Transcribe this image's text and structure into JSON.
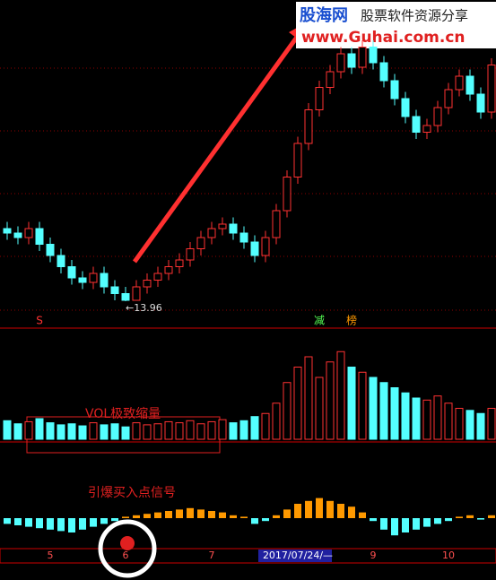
{
  "chart_data": {
    "type": "candlestick",
    "watermark": {
      "site": "股海网",
      "slogan": "股票软件资源分享",
      "url": "www.Guhai.com.cn"
    },
    "categories": [
      null,
      null,
      null,
      null,
      "5",
      null,
      null,
      null,
      null,
      null,
      null,
      "6",
      null,
      null,
      null,
      null,
      null,
      null,
      null,
      "7",
      null,
      null,
      null,
      null,
      null,
      null,
      null,
      "2017/07/24/—",
      null,
      null,
      null,
      null,
      null,
      null,
      "9",
      null,
      null,
      null,
      null,
      null,
      null,
      "10",
      null,
      null,
      null,
      null
    ],
    "open": [
      17.2,
      17.0,
      16.8,
      17.2,
      16.5,
      16.0,
      15.5,
      15.0,
      14.8,
      15.2,
      14.6,
      14.3,
      14.0,
      14.6,
      14.9,
      15.2,
      15.5,
      15.8,
      16.3,
      16.8,
      17.2,
      17.4,
      17.0,
      16.6,
      16.0,
      16.8,
      18.0,
      19.5,
      21.0,
      22.5,
      23.5,
      24.2,
      25.0,
      24.4,
      25.3,
      24.6,
      23.8,
      23.0,
      22.2,
      21.5,
      21.8,
      22.6,
      23.4,
      24.0,
      23.2,
      22.4
    ],
    "close": [
      17.0,
      16.8,
      17.2,
      16.5,
      16.0,
      15.5,
      15.0,
      14.8,
      15.2,
      14.6,
      14.3,
      14.0,
      14.6,
      14.9,
      15.2,
      15.5,
      15.8,
      16.3,
      16.8,
      17.2,
      17.4,
      17.0,
      16.6,
      16.0,
      16.8,
      18.0,
      19.5,
      21.0,
      22.5,
      23.5,
      24.2,
      25.0,
      24.4,
      25.3,
      24.6,
      23.8,
      23.0,
      22.2,
      21.5,
      21.8,
      22.6,
      23.4,
      24.0,
      23.2,
      22.4,
      24.5
    ],
    "high": [
      17.5,
      17.3,
      17.5,
      17.5,
      16.8,
      16.3,
      15.8,
      15.3,
      15.5,
      15.5,
      14.9,
      14.6,
      14.9,
      15.2,
      15.5,
      15.8,
      16.1,
      16.6,
      17.1,
      17.5,
      17.7,
      17.7,
      17.3,
      16.9,
      17.1,
      18.3,
      19.8,
      21.3,
      22.8,
      23.8,
      24.5,
      25.3,
      25.3,
      25.6,
      25.6,
      24.9,
      24.1,
      23.3,
      22.5,
      22.1,
      22.9,
      23.7,
      24.3,
      24.3,
      23.5,
      24.8
    ],
    "low": [
      16.7,
      16.5,
      16.5,
      16.2,
      15.7,
      15.2,
      14.7,
      14.5,
      14.5,
      14.3,
      14.0,
      13.96,
      13.98,
      14.3,
      14.6,
      14.9,
      15.2,
      15.5,
      16.0,
      16.5,
      16.9,
      16.7,
      16.3,
      15.7,
      15.7,
      16.5,
      17.7,
      19.2,
      20.7,
      22.2,
      23.2,
      23.9,
      24.1,
      24.1,
      24.3,
      23.5,
      22.7,
      21.9,
      21.2,
      21.2,
      21.5,
      22.3,
      23.1,
      22.9,
      22.1,
      22.1
    ],
    "ylim": [
      13,
      27
    ],
    "up_color": "#ff3232",
    "down_color": "#54ffff",
    "low_label": {
      "index": 11,
      "text": "←13.96"
    },
    "signals": [
      {
        "index": 3,
        "text": "S",
        "color": "#ff3232"
      },
      {
        "index": 29,
        "text": "减",
        "color": "#54ff54"
      },
      {
        "index": 32,
        "text": "榜",
        "color": "#ff9900"
      }
    ],
    "volume": {
      "values": [
        18,
        15,
        17,
        20,
        16,
        14,
        15,
        13,
        16,
        14,
        15,
        12,
        16,
        14,
        15,
        17,
        16,
        18,
        15,
        17,
        19,
        16,
        18,
        22,
        25,
        35,
        55,
        70,
        80,
        60,
        75,
        85,
        70,
        65,
        60,
        55,
        50,
        45,
        40,
        38,
        42,
        35,
        30,
        28,
        25,
        30
      ],
      "ylim": [
        0,
        100
      ],
      "annotation": "VOL极致缩量"
    },
    "macd": {
      "values": [
        -0.2,
        -0.25,
        -0.3,
        -0.35,
        -0.4,
        -0.45,
        -0.5,
        -0.4,
        -0.3,
        -0.2,
        -0.1,
        0.05,
        0.1,
        0.15,
        0.2,
        0.25,
        0.3,
        0.35,
        0.3,
        0.25,
        0.2,
        0.1,
        0.05,
        -0.2,
        -0.1,
        0.1,
        0.3,
        0.5,
        0.6,
        0.7,
        0.6,
        0.5,
        0.4,
        0.2,
        -0.1,
        -0.4,
        -0.6,
        -0.5,
        -0.4,
        -0.3,
        -0.2,
        -0.1,
        0.05,
        0.1,
        -0.05,
        0.1
      ],
      "ylim": [
        -1,
        1
      ],
      "pos_color": "#ff9900",
      "neg_color": "#54ffff",
      "annotation": "引爆买入点信号"
    }
  }
}
